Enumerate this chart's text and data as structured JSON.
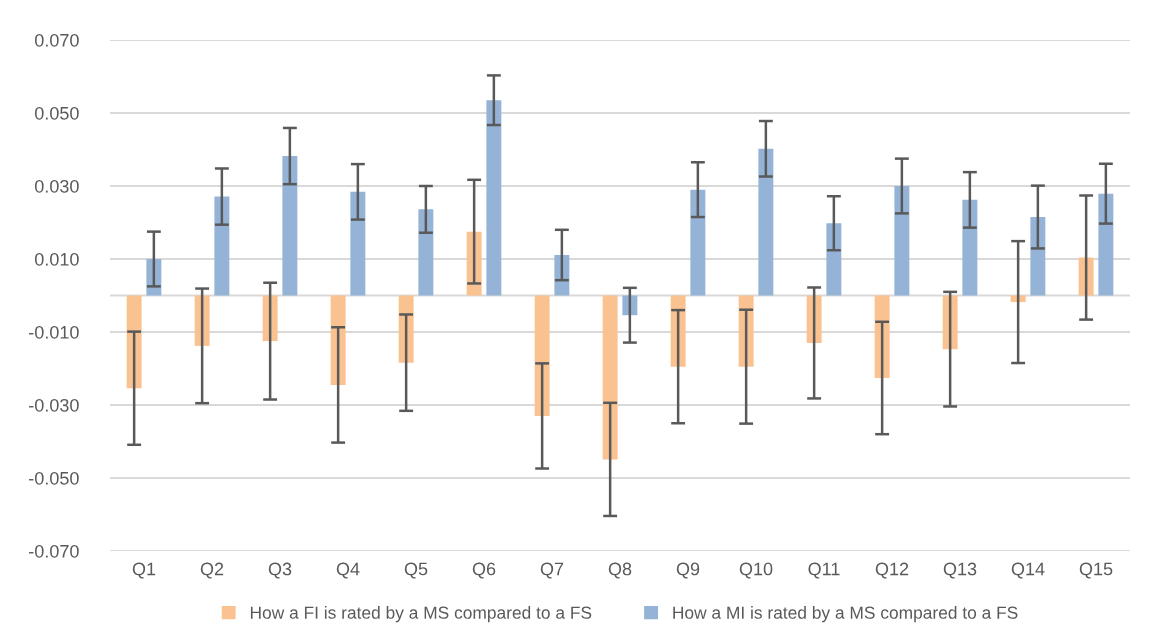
{
  "chart_data": {
    "type": "bar",
    "categories": [
      "Q1",
      "Q2",
      "Q3",
      "Q4",
      "Q5",
      "Q6",
      "Q7",
      "Q8",
      "Q9",
      "Q10",
      "Q11",
      "Q12",
      "Q13",
      "Q14",
      "Q15"
    ],
    "series": [
      {
        "name": "How a FI is rated by a MS compared to a FS",
        "color": "#f9c290",
        "values": [
          -0.0254,
          -0.0138,
          -0.0125,
          -0.0245,
          -0.0184,
          0.0175,
          -0.033,
          -0.0449,
          -0.0195,
          -0.0195,
          -0.013,
          -0.0226,
          -0.0147,
          -0.0018,
          0.0104
        ],
        "errors": [
          0.0155,
          0.0157,
          0.016,
          0.0158,
          0.0132,
          0.0142,
          0.0144,
          0.0155,
          0.0155,
          0.0156,
          0.0152,
          0.0154,
          0.0157,
          0.0167,
          0.017
        ]
      },
      {
        "name": "How a MI is rated by a MS compared to a FS",
        "color": "#95b3d7",
        "values": [
          0.01,
          0.0271,
          0.0382,
          0.0284,
          0.0236,
          0.0535,
          0.0111,
          -0.0054,
          0.029,
          0.0402,
          0.0198,
          0.03,
          0.0262,
          0.0215,
          0.0279
        ],
        "errors": [
          0.0075,
          0.0077,
          0.0077,
          0.0076,
          0.0064,
          0.0068,
          0.0069,
          0.0075,
          0.0075,
          0.0076,
          0.0074,
          0.0075,
          0.0076,
          0.0086,
          0.0082
        ]
      }
    ],
    "ylim": [
      -0.07,
      0.07
    ],
    "yticks": [
      {
        "value": -0.07,
        "label": "-0.070"
      },
      {
        "value": -0.05,
        "label": "-0.050"
      },
      {
        "value": -0.03,
        "label": "-0.030"
      },
      {
        "value": -0.01,
        "label": "-0.010"
      },
      {
        "value": 0.01,
        "label": "0.010"
      },
      {
        "value": 0.03,
        "label": "0.030"
      },
      {
        "value": 0.05,
        "label": "0.050"
      },
      {
        "value": 0.07,
        "label": "0.070"
      }
    ],
    "grid": "y",
    "legend": "bottom"
  }
}
